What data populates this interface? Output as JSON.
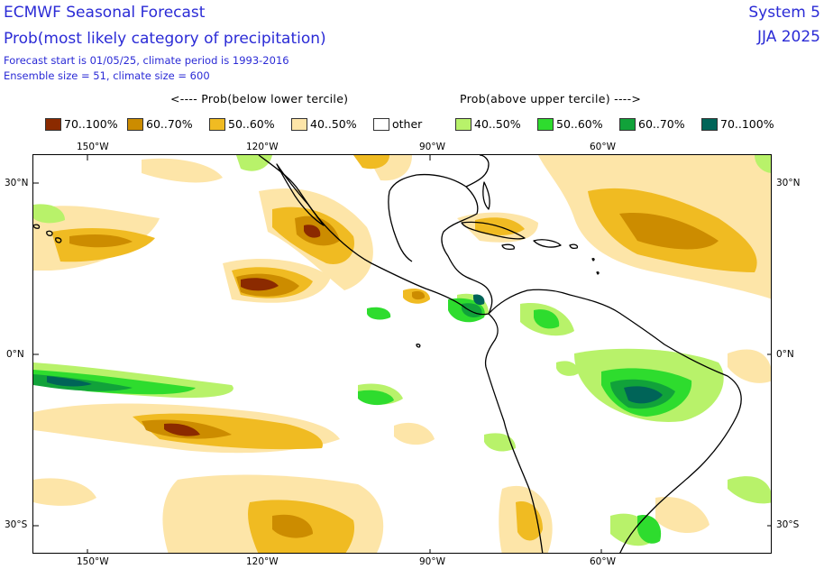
{
  "header": {
    "title_line1": "ECMWF Seasonal Forecast",
    "title_line2": "Prob(most likely category of precipitation)",
    "info_line1": "Forecast start is 01/05/25, climate period is 1993-2016",
    "info_line2": "Ensemble size = 51, climate size = 600",
    "system": "System 5",
    "season": "JJA 2025"
  },
  "legend": {
    "below_label": "<---- Prob(below lower tercile)",
    "above_label": "Prob(above upper tercile) ---->",
    "items": [
      {
        "label": "70..100%",
        "color": "#8b2a00"
      },
      {
        "label": "60..70%",
        "color": "#cc8c00"
      },
      {
        "label": "50..60%",
        "color": "#f0bb22"
      },
      {
        "label": "40..50%",
        "color": "#fde5a8"
      },
      {
        "label": "other",
        "color": "#ffffff"
      },
      {
        "label": "40..50%",
        "color": "#b8f26a"
      },
      {
        "label": "50..60%",
        "color": "#2edc2e"
      },
      {
        "label": "60..70%",
        "color": "#11a23a"
      },
      {
        "label": "70..100%",
        "color": "#006458"
      }
    ]
  },
  "axes": {
    "lon_labels": [
      "150°W",
      "120°W",
      "90°W",
      "60°W"
    ],
    "lat_left": [
      "30°N",
      "0°N",
      "30°S"
    ],
    "lat_right": [
      "30°N",
      "0°N",
      "30°S"
    ]
  }
}
